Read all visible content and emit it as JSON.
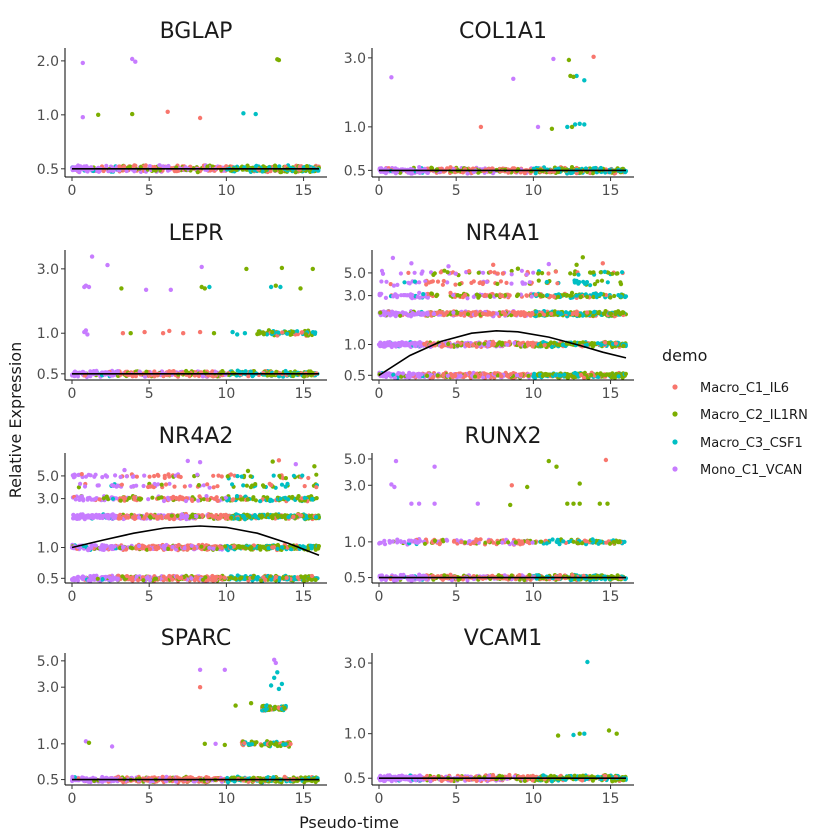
{
  "chart_data": {
    "type": "scatter",
    "xlabel": "Pseudo-time",
    "ylabel": "Relative Expression",
    "y_scale": "log",
    "legend": {
      "title": "demo",
      "position": "right",
      "entries": [
        {
          "name": "Macro_C1_IL6",
          "color": "#F8766D"
        },
        {
          "name": "Macro_C2_IL1RN",
          "color": "#7CAE00"
        },
        {
          "name": "Macro_C3_CSF1",
          "color": "#00BFC4"
        },
        {
          "name": "Mono_C1_VCAN",
          "color": "#C77CFF"
        }
      ]
    },
    "x_ticks": [
      "0",
      "5",
      "10",
      "15"
    ],
    "xlim": [
      0,
      16
    ],
    "trend_color": "#000000",
    "panels": [
      {
        "title": "BGLAP",
        "ylim": [
          0.45,
          2.3
        ],
        "y_ticks": [
          {
            "v": 0.5,
            "t": "0.5"
          },
          {
            "v": 1.0,
            "t": "1.0"
          },
          {
            "v": 2.0,
            "t": "2.0"
          }
        ],
        "trend": [
          [
            0,
            0.5
          ],
          [
            16,
            0.5
          ]
        ],
        "bands": [
          {
            "y": 0.5,
            "density": "dense"
          }
        ],
        "points": [
          [
            0.7,
            1.95,
            3
          ],
          [
            3.9,
            2.05,
            3
          ],
          [
            4.1,
            1.98,
            3
          ],
          [
            13.3,
            2.04,
            1
          ],
          [
            13.4,
            2.02,
            1
          ],
          [
            0.7,
            0.97,
            3
          ],
          [
            1.7,
            1.0,
            1
          ],
          [
            3.9,
            1.01,
            1
          ],
          [
            6.2,
            1.04,
            0
          ],
          [
            8.3,
            0.96,
            0
          ],
          [
            11.1,
            1.02,
            2
          ],
          [
            11.9,
            1.01,
            2
          ]
        ]
      },
      {
        "title": "COL1A1",
        "ylim": [
          0.45,
          3.4
        ],
        "y_ticks": [
          {
            "v": 0.5,
            "t": "0.5"
          },
          {
            "v": 1.0,
            "t": "1.0"
          },
          {
            "v": 3.0,
            "t": "3.0"
          }
        ],
        "trend": [
          [
            0,
            0.5
          ],
          [
            16,
            0.5
          ]
        ],
        "bands": [
          {
            "y": 0.5,
            "density": "dense"
          }
        ],
        "points": [
          [
            0.8,
            2.2,
            3
          ],
          [
            6.6,
            1.0,
            0
          ],
          [
            8.7,
            2.15,
            3
          ],
          [
            11.3,
            2.95,
            3
          ],
          [
            12.3,
            2.9,
            1
          ],
          [
            13.9,
            3.05,
            0
          ],
          [
            12.4,
            2.25,
            1
          ],
          [
            12.8,
            2.25,
            2
          ],
          [
            13.3,
            2.1,
            2
          ],
          [
            12.6,
            2.22,
            1
          ],
          [
            10.3,
            1.0,
            3
          ],
          [
            11.2,
            0.97,
            1
          ],
          [
            12.2,
            1.0,
            2
          ],
          [
            12.7,
            1.04,
            2
          ],
          [
            13.0,
            1.05,
            2
          ],
          [
            13.3,
            1.04,
            2
          ],
          [
            12.5,
            1.0,
            1
          ]
        ]
      },
      {
        "title": "LEPR",
        "ylim": [
          0.45,
          4.0
        ],
        "y_ticks": [
          {
            "v": 0.5,
            "t": "0.5"
          },
          {
            "v": 1.0,
            "t": "1.0"
          },
          {
            "v": 3.0,
            "t": "3.0"
          }
        ],
        "trend": [
          [
            0,
            0.5
          ],
          [
            16,
            0.5
          ]
        ],
        "bands": [
          {
            "y": 0.5,
            "density": "dense"
          },
          {
            "y": 1.0,
            "density": "sparse",
            "from": 12.0,
            "to": 16.0
          }
        ],
        "points": [
          [
            1.3,
            3.7,
            3
          ],
          [
            2.3,
            3.2,
            3
          ],
          [
            8.4,
            3.1,
            3
          ],
          [
            11.3,
            3.0,
            1
          ],
          [
            13.6,
            3.05,
            1
          ],
          [
            15.6,
            3.0,
            1
          ],
          [
            0.8,
            2.2,
            3
          ],
          [
            0.9,
            2.25,
            3
          ],
          [
            1.1,
            2.2,
            3
          ],
          [
            3.2,
            2.15,
            1
          ],
          [
            4.8,
            2.1,
            3
          ],
          [
            6.4,
            2.1,
            3
          ],
          [
            8.4,
            2.2,
            1
          ],
          [
            8.6,
            2.15,
            1
          ],
          [
            8.9,
            2.2,
            2
          ],
          [
            12.9,
            2.2,
            2
          ],
          [
            13.2,
            2.25,
            1
          ],
          [
            13.5,
            2.2,
            2
          ],
          [
            14.8,
            2.15,
            1
          ],
          [
            0.8,
            1.02,
            3
          ],
          [
            0.9,
            1.05,
            3
          ],
          [
            1.0,
            0.98,
            3
          ],
          [
            3.3,
            1.0,
            0
          ],
          [
            3.8,
            1.0,
            1
          ],
          [
            4.7,
            1.02,
            0
          ],
          [
            5.9,
            1.0,
            0
          ],
          [
            6.3,
            1.04,
            0
          ],
          [
            7.2,
            1.0,
            0
          ],
          [
            8.3,
            1.02,
            0
          ],
          [
            9.2,
            1.0,
            1
          ],
          [
            10.4,
            1.02,
            2
          ],
          [
            10.7,
            0.98,
            2
          ],
          [
            11.2,
            1.0,
            2
          ]
        ]
      },
      {
        "title": "NR4A1",
        "ylim": [
          0.45,
          8.0
        ],
        "y_ticks": [
          {
            "v": 0.5,
            "t": "0.5"
          },
          {
            "v": 1.0,
            "t": "1.0"
          },
          {
            "v": 3.0,
            "t": "3.0"
          },
          {
            "v": 5.0,
            "t": "5.0"
          }
        ],
        "trend": [
          [
            0,
            0.5
          ],
          [
            2,
            0.78
          ],
          [
            4,
            1.07
          ],
          [
            6,
            1.29
          ],
          [
            7.6,
            1.36
          ],
          [
            9,
            1.33
          ],
          [
            11,
            1.18
          ],
          [
            13,
            0.98
          ],
          [
            14.5,
            0.84
          ],
          [
            16,
            0.74
          ]
        ],
        "bands": [
          {
            "y": 0.5,
            "density": "dense"
          },
          {
            "y": 1.0,
            "density": "dense"
          },
          {
            "y": 2.0,
            "density": "dense"
          },
          {
            "y": 3.0,
            "density": "medium"
          },
          {
            "y": 4.0,
            "density": "sparse"
          },
          {
            "y": 5.0,
            "density": "sparse"
          }
        ],
        "points": [
          [
            0.9,
            7.0,
            3
          ],
          [
            2.1,
            6.2,
            3
          ],
          [
            13.2,
            7.1,
            1
          ],
          [
            12.8,
            6.0,
            1
          ],
          [
            14.5,
            6.2,
            0
          ],
          [
            11.0,
            6.1,
            3
          ],
          [
            4.5,
            5.8,
            3
          ],
          [
            9.0,
            5.5,
            1
          ],
          [
            7.4,
            6.0,
            0
          ]
        ]
      },
      {
        "title": "NR4A2",
        "ylim": [
          0.45,
          8.0
        ],
        "y_ticks": [
          {
            "v": 0.5,
            "t": "0.5"
          },
          {
            "v": 1.0,
            "t": "1.0"
          },
          {
            "v": 3.0,
            "t": "3.0"
          },
          {
            "v": 5.0,
            "t": "5.0"
          }
        ],
        "trend": [
          [
            0,
            1.0
          ],
          [
            2,
            1.18
          ],
          [
            4,
            1.38
          ],
          [
            6,
            1.55
          ],
          [
            8.3,
            1.62
          ],
          [
            10,
            1.57
          ],
          [
            12,
            1.38
          ],
          [
            14,
            1.1
          ],
          [
            16,
            0.84
          ]
        ],
        "bands": [
          {
            "y": 0.5,
            "density": "dense"
          },
          {
            "y": 1.0,
            "density": "dense"
          },
          {
            "y": 2.0,
            "density": "dense"
          },
          {
            "y": 3.0,
            "density": "medium"
          },
          {
            "y": 4.0,
            "density": "sparse"
          },
          {
            "y": 5.0,
            "density": "sparse"
          }
        ],
        "points": [
          [
            7.5,
            7.0,
            3
          ],
          [
            8.3,
            6.8,
            3
          ],
          [
            13.0,
            6.9,
            1
          ],
          [
            13.4,
            7.1,
            0
          ],
          [
            14.5,
            6.5,
            3
          ],
          [
            15.7,
            6.2,
            1
          ],
          [
            3.4,
            5.7,
            3
          ],
          [
            11.4,
            5.6,
            1
          ]
        ]
      },
      {
        "title": "RUNX2",
        "ylim": [
          0.45,
          5.4
        ],
        "y_ticks": [
          {
            "v": 0.5,
            "t": "0.5"
          },
          {
            "v": 1.0,
            "t": "1.0"
          },
          {
            "v": 3.0,
            "t": "3.0"
          },
          {
            "v": 5.0,
            "t": "5.0"
          }
        ],
        "trend": [
          [
            0,
            0.5
          ],
          [
            16,
            0.5
          ]
        ],
        "bands": [
          {
            "y": 0.5,
            "density": "dense"
          },
          {
            "y": 1.0,
            "density": "medium"
          }
        ],
        "points": [
          [
            1.1,
            4.8,
            3
          ],
          [
            3.6,
            4.3,
            3
          ],
          [
            11.0,
            4.8,
            1
          ],
          [
            11.5,
            4.3,
            1
          ],
          [
            14.7,
            4.9,
            0
          ],
          [
            0.8,
            3.05,
            3
          ],
          [
            1.0,
            2.9,
            3
          ],
          [
            8.6,
            3.0,
            0
          ],
          [
            9.6,
            2.9,
            1
          ],
          [
            13.0,
            3.1,
            1
          ],
          [
            2.1,
            2.1,
            3
          ],
          [
            2.6,
            2.1,
            3
          ],
          [
            3.6,
            2.1,
            3
          ],
          [
            6.4,
            2.1,
            3
          ],
          [
            8.5,
            2.05,
            1
          ],
          [
            12.2,
            2.1,
            1
          ],
          [
            12.6,
            2.1,
            1
          ],
          [
            13.0,
            2.1,
            1
          ],
          [
            14.3,
            2.1,
            1
          ],
          [
            14.8,
            2.1,
            1
          ]
        ]
      },
      {
        "title": "SPARC",
        "ylim": [
          0.45,
          5.6
        ],
        "y_ticks": [
          {
            "v": 0.5,
            "t": "0.5"
          },
          {
            "v": 1.0,
            "t": "1.0"
          },
          {
            "v": 3.0,
            "t": "3.0"
          },
          {
            "v": 5.0,
            "t": "5.0"
          }
        ],
        "trend": [
          [
            0,
            0.5
          ],
          [
            16,
            0.5
          ]
        ],
        "bands": [
          {
            "y": 0.5,
            "density": "dense"
          },
          {
            "y": 1.0,
            "density": "sparse",
            "from": 11.0,
            "to": 14.2
          },
          {
            "y": 2.0,
            "density": "sparse",
            "from": 12.3,
            "to": 13.9
          }
        ],
        "points": [
          [
            13.1,
            5.1,
            3
          ],
          [
            13.2,
            4.8,
            3
          ],
          [
            8.3,
            4.2,
            3
          ],
          [
            9.9,
            4.2,
            3
          ],
          [
            13.3,
            4.0,
            2
          ],
          [
            13.1,
            3.6,
            2
          ],
          [
            8.3,
            3.0,
            0
          ],
          [
            12.9,
            3.1,
            2
          ],
          [
            13.4,
            2.9,
            2
          ],
          [
            13.6,
            3.2,
            2
          ],
          [
            10.6,
            2.1,
            1
          ],
          [
            11.6,
            2.2,
            1
          ],
          [
            0.9,
            1.05,
            3
          ],
          [
            1.1,
            1.02,
            1
          ],
          [
            2.6,
            0.95,
            3
          ],
          [
            8.6,
            1.0,
            1
          ],
          [
            9.3,
            1.0,
            3
          ],
          [
            9.9,
            0.98,
            1
          ]
        ]
      },
      {
        "title": "VCAM1",
        "ylim": [
          0.45,
          3.4
        ],
        "y_ticks": [
          {
            "v": 0.5,
            "t": "0.5"
          },
          {
            "v": 1.0,
            "t": "1.0"
          },
          {
            "v": 3.0,
            "t": "3.0"
          }
        ],
        "trend": [
          [
            0,
            0.5
          ],
          [
            16,
            0.5
          ]
        ],
        "bands": [
          {
            "y": 0.5,
            "density": "dense"
          }
        ],
        "points": [
          [
            13.5,
            3.05,
            2
          ],
          [
            11.6,
            0.97,
            1
          ],
          [
            12.6,
            0.98,
            2
          ],
          [
            13.0,
            1.0,
            1
          ],
          [
            13.3,
            1.0,
            2
          ],
          [
            14.9,
            1.05,
            1
          ],
          [
            15.4,
            1.0,
            1
          ]
        ]
      }
    ]
  }
}
